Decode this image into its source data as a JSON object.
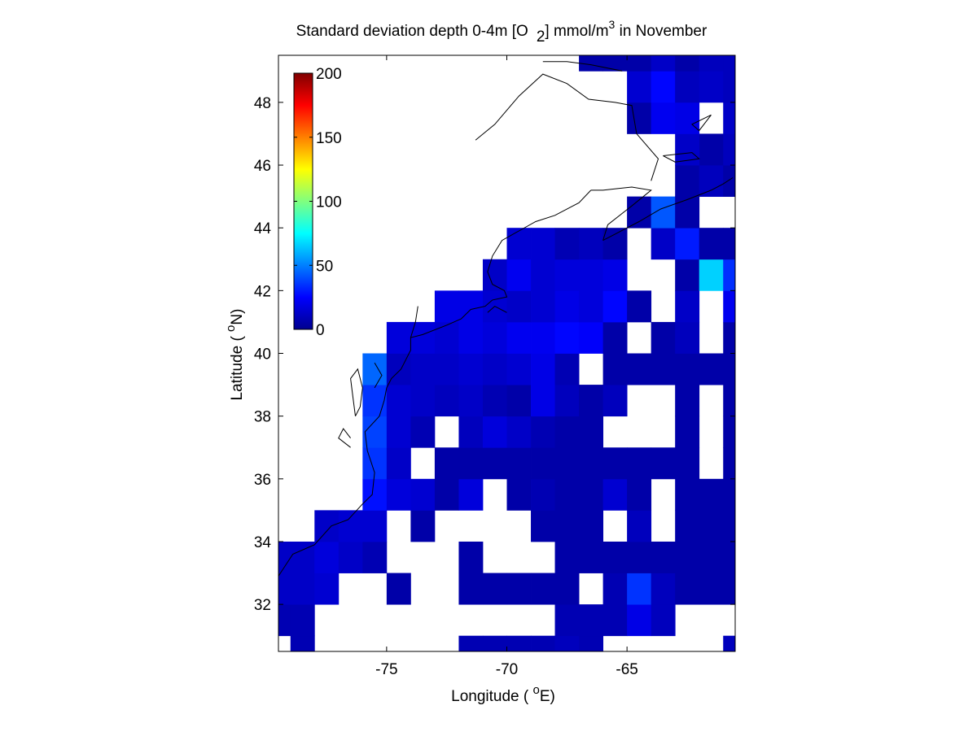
{
  "chart_data": {
    "type": "heatmap",
    "title": {
      "main": "Standard deviation depth 0-4m [O",
      "sub": "2",
      "rest": "] mmol/m",
      "sup": "3",
      "tail": " in November"
    },
    "xlabel": {
      "pre": "Longitude ( ",
      "sup": "o",
      "post": "E)"
    },
    "ylabel": {
      "pre": "Latitude ( ",
      "sup": "o",
      "post": "N)"
    },
    "xlim": [
      -79.5,
      -60.5
    ],
    "ylim": [
      30.5,
      49.5
    ],
    "xticks": [
      -75,
      -70,
      -65
    ],
    "yticks": [
      32,
      34,
      36,
      38,
      40,
      42,
      44,
      46,
      48
    ],
    "colorbar": {
      "colormap": "jet",
      "min": 0,
      "max": 200,
      "ticks": [
        0,
        50,
        100,
        150,
        200
      ],
      "placement": "inside-top-left"
    },
    "grid": false,
    "cell_size_deg": 1,
    "cells": [
      [
        -78.5,
        30.5,
        10
      ],
      [
        -79.5,
        31.5,
        10
      ],
      [
        -71.5,
        30.5,
        10
      ],
      [
        -70.5,
        30.5,
        10
      ],
      [
        -69.5,
        30.5,
        10
      ],
      [
        -68.5,
        30.5,
        10
      ],
      [
        -67.5,
        30.5,
        12
      ],
      [
        -66.5,
        30.5,
        10
      ],
      [
        -60.5,
        30.5,
        12
      ],
      [
        -78.5,
        31.5,
        10
      ],
      [
        -79.5,
        32.5,
        14
      ],
      [
        -67.5,
        31.5,
        10
      ],
      [
        -66.5,
        31.5,
        10
      ],
      [
        -65.5,
        31.5,
        10
      ],
      [
        -64.5,
        31.5,
        20
      ],
      [
        -63.5,
        31.5,
        12
      ],
      [
        -78.5,
        32.5,
        14
      ],
      [
        -77.5,
        32.5,
        16
      ],
      [
        -74.5,
        32.5,
        8
      ],
      [
        -71.5,
        32.5,
        8
      ],
      [
        -70.5,
        32.5,
        8
      ],
      [
        -69.5,
        32.5,
        8
      ],
      [
        -68.5,
        32.5,
        8
      ],
      [
        -67.5,
        32.5,
        8
      ],
      [
        -65.5,
        32.5,
        10
      ],
      [
        -64.5,
        32.5,
        35
      ],
      [
        -63.5,
        32.5,
        12
      ],
      [
        -61.5,
        32.5,
        8
      ],
      [
        -60.5,
        32.5,
        8
      ],
      [
        -62.5,
        32.5,
        8
      ],
      [
        -79.5,
        33.5,
        14
      ],
      [
        -78.5,
        33.5,
        14
      ],
      [
        -77.5,
        33.5,
        18
      ],
      [
        -76.5,
        33.5,
        14
      ],
      [
        -75.5,
        33.5,
        10
      ],
      [
        -71.5,
        33.5,
        8
      ],
      [
        -67.5,
        33.5,
        8
      ],
      [
        -66.5,
        33.5,
        8
      ],
      [
        -65.5,
        33.5,
        8
      ],
      [
        -64.5,
        33.5,
        8
      ],
      [
        -63.5,
        33.5,
        8
      ],
      [
        -61.5,
        33.5,
        8
      ],
      [
        -60.5,
        33.5,
        8
      ],
      [
        -62.5,
        33.5,
        8
      ],
      [
        -77.5,
        34.5,
        14
      ],
      [
        -76.5,
        34.5,
        16
      ],
      [
        -75.5,
        34.5,
        16
      ],
      [
        -73.5,
        34.5,
        8
      ],
      [
        -68.5,
        34.5,
        8
      ],
      [
        -67.5,
        34.5,
        8
      ],
      [
        -66.5,
        34.5,
        8
      ],
      [
        -64.5,
        34.5,
        12
      ],
      [
        -62.5,
        34.5,
        8
      ],
      [
        -60.5,
        34.5,
        8
      ],
      [
        -61.5,
        34.5,
        8
      ],
      [
        -75.5,
        35.5,
        28
      ],
      [
        -74.5,
        35.5,
        18
      ],
      [
        -73.5,
        35.5,
        16
      ],
      [
        -72.5,
        35.5,
        8
      ],
      [
        -71.5,
        35.5,
        18
      ],
      [
        -69.5,
        35.5,
        8
      ],
      [
        -68.5,
        35.5,
        10
      ],
      [
        -67.5,
        35.5,
        8
      ],
      [
        -66.5,
        35.5,
        8
      ],
      [
        -65.5,
        35.5,
        16
      ],
      [
        -64.5,
        35.5,
        8
      ],
      [
        -62.5,
        35.5,
        8
      ],
      [
        -61.5,
        35.5,
        8
      ],
      [
        -60.5,
        35.5,
        8
      ],
      [
        -75.5,
        36.5,
        35
      ],
      [
        -74.5,
        36.5,
        14
      ],
      [
        -72.5,
        36.5,
        8
      ],
      [
        -71.5,
        36.5,
        8
      ],
      [
        -70.5,
        36.5,
        8
      ],
      [
        -69.5,
        36.5,
        8
      ],
      [
        -68.5,
        36.5,
        8
      ],
      [
        -67.5,
        36.5,
        8
      ],
      [
        -66.5,
        36.5,
        8
      ],
      [
        -65.5,
        36.5,
        8
      ],
      [
        -64.5,
        36.5,
        8
      ],
      [
        -63.5,
        36.5,
        8
      ],
      [
        -62.5,
        36.5,
        8
      ],
      [
        -60.5,
        36.5,
        8
      ],
      [
        -75.5,
        37.5,
        38
      ],
      [
        -74.5,
        37.5,
        16
      ],
      [
        -73.5,
        37.5,
        10
      ],
      [
        -71.5,
        37.5,
        12
      ],
      [
        -70.5,
        37.5,
        18
      ],
      [
        -69.5,
        37.5,
        14
      ],
      [
        -68.5,
        37.5,
        10
      ],
      [
        -67.5,
        37.5,
        8
      ],
      [
        -66.5,
        37.5,
        8
      ],
      [
        -62.5,
        37.5,
        8
      ],
      [
        -60.5,
        37.5,
        8
      ],
      [
        -75.5,
        38.5,
        35
      ],
      [
        -74.5,
        38.5,
        16
      ],
      [
        -73.5,
        38.5,
        14
      ],
      [
        -72.5,
        38.5,
        12
      ],
      [
        -71.5,
        38.5,
        14
      ],
      [
        -70.5,
        38.5,
        10
      ],
      [
        -69.5,
        38.5,
        8
      ],
      [
        -68.5,
        38.5,
        20
      ],
      [
        -67.5,
        38.5,
        12
      ],
      [
        -66.5,
        38.5,
        8
      ],
      [
        -65.5,
        38.5,
        12
      ],
      [
        -62.5,
        38.5,
        8
      ],
      [
        -60.5,
        38.5,
        8
      ],
      [
        -75.5,
        39.5,
        45
      ],
      [
        -74.5,
        39.5,
        12
      ],
      [
        -73.5,
        39.5,
        14
      ],
      [
        -72.5,
        39.5,
        14
      ],
      [
        -71.5,
        39.5,
        16
      ],
      [
        -70.5,
        39.5,
        14
      ],
      [
        -69.5,
        39.5,
        16
      ],
      [
        -68.5,
        39.5,
        20
      ],
      [
        -67.5,
        39.5,
        10
      ],
      [
        -65.5,
        39.5,
        8
      ],
      [
        -64.5,
        39.5,
        8
      ],
      [
        -63.5,
        39.5,
        8
      ],
      [
        -62.5,
        39.5,
        8
      ],
      [
        -61.5,
        39.5,
        8
      ],
      [
        -60.5,
        39.5,
        8
      ],
      [
        -74.5,
        40.5,
        18
      ],
      [
        -73.5,
        40.5,
        18
      ],
      [
        -72.5,
        40.5,
        16
      ],
      [
        -71.5,
        40.5,
        20
      ],
      [
        -70.5,
        40.5,
        18
      ],
      [
        -69.5,
        40.5,
        22
      ],
      [
        -68.5,
        40.5,
        22
      ],
      [
        -67.5,
        40.5,
        26
      ],
      [
        -66.5,
        40.5,
        24
      ],
      [
        -65.5,
        40.5,
        8
      ],
      [
        -63.5,
        40.5,
        8
      ],
      [
        -62.5,
        40.5,
        12
      ],
      [
        -60.5,
        40.5,
        8
      ],
      [
        -72.5,
        41.5,
        20
      ],
      [
        -71.5,
        41.5,
        20
      ],
      [
        -70.5,
        41.5,
        16
      ],
      [
        -69.5,
        41.5,
        14
      ],
      [
        -68.5,
        41.5,
        16
      ],
      [
        -67.5,
        41.5,
        20
      ],
      [
        -66.5,
        41.5,
        18
      ],
      [
        -65.5,
        41.5,
        26
      ],
      [
        -64.5,
        41.5,
        8
      ],
      [
        -62.5,
        41.5,
        14
      ],
      [
        -60.5,
        41.5,
        22
      ],
      [
        -70.5,
        42.5,
        14
      ],
      [
        -69.5,
        42.5,
        22
      ],
      [
        -68.5,
        42.5,
        16
      ],
      [
        -67.5,
        42.5,
        18
      ],
      [
        -66.5,
        42.5,
        18
      ],
      [
        -65.5,
        42.5,
        20
      ],
      [
        -62.5,
        42.5,
        8
      ],
      [
        -61.5,
        42.5,
        66
      ],
      [
        -60.5,
        42.5,
        34
      ],
      [
        -69.5,
        43.5,
        16
      ],
      [
        -68.5,
        43.5,
        16
      ],
      [
        -67.5,
        43.5,
        10
      ],
      [
        -66.5,
        43.5,
        12
      ],
      [
        -65.5,
        43.5,
        8
      ],
      [
        -63.5,
        43.5,
        14
      ],
      [
        -62.5,
        43.5,
        30
      ],
      [
        -61.5,
        43.5,
        8
      ],
      [
        -60.5,
        43.5,
        8
      ],
      [
        -64.5,
        44.5,
        8
      ],
      [
        -63.5,
        44.5,
        42
      ],
      [
        -62.5,
        44.5,
        8
      ],
      [
        -62.5,
        45.5,
        8
      ],
      [
        -61.5,
        45.5,
        12
      ],
      [
        -60.5,
        45.5,
        8
      ],
      [
        -61.5,
        46.5,
        8
      ],
      [
        -62.5,
        46.5,
        14
      ],
      [
        -60.5,
        46.5,
        12
      ],
      [
        -64.5,
        47.5,
        8
      ],
      [
        -63.5,
        47.5,
        22
      ],
      [
        -62.5,
        47.5,
        20
      ],
      [
        -60.5,
        47.5,
        14
      ],
      [
        -64.5,
        48.5,
        16
      ],
      [
        -63.5,
        48.5,
        26
      ],
      [
        -62.5,
        48.5,
        12
      ],
      [
        -61.5,
        48.5,
        14
      ],
      [
        -60.5,
        48.5,
        12
      ],
      [
        -66.5,
        49.5,
        8
      ],
      [
        -65.5,
        49.5,
        8
      ],
      [
        -64.5,
        49.5,
        8
      ],
      [
        -63.5,
        49.5,
        14
      ],
      [
        -62.5,
        49.5,
        8
      ],
      [
        -61.5,
        49.5,
        12
      ],
      [
        -60.5,
        49.5,
        12
      ]
    ],
    "coastline": [
      [
        [
          -79.5,
          32.9
        ],
        [
          -78.9,
          33.6
        ],
        [
          -78.0,
          33.9
        ],
        [
          -77.3,
          34.5
        ],
        [
          -76.6,
          34.7
        ],
        [
          -76.0,
          35.2
        ],
        [
          -75.6,
          35.5
        ],
        [
          -75.5,
          36.2
        ],
        [
          -75.8,
          36.9
        ],
        [
          -75.9,
          37.5
        ],
        [
          -75.3,
          38.0
        ],
        [
          -75.1,
          38.5
        ],
        [
          -75.0,
          38.9
        ],
        [
          -74.8,
          39.2
        ],
        [
          -74.4,
          39.5
        ],
        [
          -74.0,
          40.1
        ],
        [
          -74.0,
          40.5
        ],
        [
          -73.5,
          40.6
        ],
        [
          -72.5,
          40.9
        ],
        [
          -71.9,
          41.1
        ],
        [
          -71.5,
          41.4
        ],
        [
          -70.9,
          41.5
        ],
        [
          -70.6,
          41.7
        ],
        [
          -70.0,
          41.8
        ],
        [
          -70.1,
          42.0
        ],
        [
          -70.6,
          42.2
        ],
        [
          -70.8,
          42.6
        ],
        [
          -70.6,
          43.1
        ],
        [
          -70.2,
          43.6
        ],
        [
          -69.5,
          43.9
        ],
        [
          -68.8,
          44.2
        ],
        [
          -68.0,
          44.4
        ],
        [
          -67.0,
          44.8
        ],
        [
          -66.5,
          45.2
        ]
      ],
      [
        [
          -66.0,
          43.6
        ],
        [
          -65.5,
          43.8
        ],
        [
          -64.5,
          44.2
        ],
        [
          -63.6,
          44.6
        ],
        [
          -62.5,
          44.9
        ],
        [
          -61.5,
          45.2
        ],
        [
          -61.0,
          45.4
        ],
        [
          -60.6,
          45.6
        ]
      ],
      [
        [
          -66.0,
          43.6
        ],
        [
          -65.8,
          44.1
        ],
        [
          -64.8,
          44.7
        ],
        [
          -64.0,
          45.2
        ],
        [
          -64.8,
          45.3
        ],
        [
          -66.0,
          45.2
        ],
        [
          -66.5,
          45.2
        ]
      ],
      [
        [
          -64.0,
          45.5
        ],
        [
          -63.7,
          46.2
        ],
        [
          -64.6,
          47.0
        ],
        [
          -64.8,
          47.9
        ],
        [
          -65.5,
          48.0
        ],
        [
          -66.6,
          48.1
        ],
        [
          -67.5,
          48.6
        ],
        [
          -68.5,
          48.9
        ],
        [
          -69.5,
          48.2
        ],
        [
          -70.5,
          47.3
        ],
        [
          -71.3,
          46.8
        ]
      ],
      [
        [
          -65.2,
          49.0
        ],
        [
          -66.5,
          49.2
        ],
        [
          -67.5,
          49.3
        ],
        [
          -68.5,
          49.3
        ]
      ],
      [
        [
          -63.5,
          46.3
        ],
        [
          -62.3,
          46.4
        ],
        [
          -62.0,
          46.2
        ],
        [
          -63.0,
          46.1
        ],
        [
          -63.5,
          46.3
        ]
      ],
      [
        [
          -61.5,
          47.6
        ],
        [
          -62.3,
          47.3
        ],
        [
          -62.0,
          47.1
        ],
        [
          -61.5,
          47.6
        ]
      ],
      [
        [
          -76.3,
          38.0
        ],
        [
          -76.4,
          38.6
        ],
        [
          -76.5,
          39.2
        ],
        [
          -76.2,
          39.5
        ],
        [
          -76.0,
          38.9
        ],
        [
          -76.1,
          38.3
        ],
        [
          -76.3,
          38.0
        ]
      ],
      [
        [
          -76.5,
          37.0
        ],
        [
          -77.0,
          37.3
        ],
        [
          -76.8,
          37.6
        ],
        [
          -76.5,
          37.3
        ]
      ],
      [
        [
          -75.5,
          38.9
        ],
        [
          -75.2,
          39.3
        ],
        [
          -75.5,
          39.7
        ]
      ],
      [
        [
          -74.0,
          40.5
        ],
        [
          -73.8,
          41.0
        ],
        [
          -73.7,
          41.5
        ]
      ],
      [
        [
          -70.8,
          41.3
        ],
        [
          -70.5,
          41.5
        ],
        [
          -70.0,
          41.3
        ]
      ]
    ]
  }
}
